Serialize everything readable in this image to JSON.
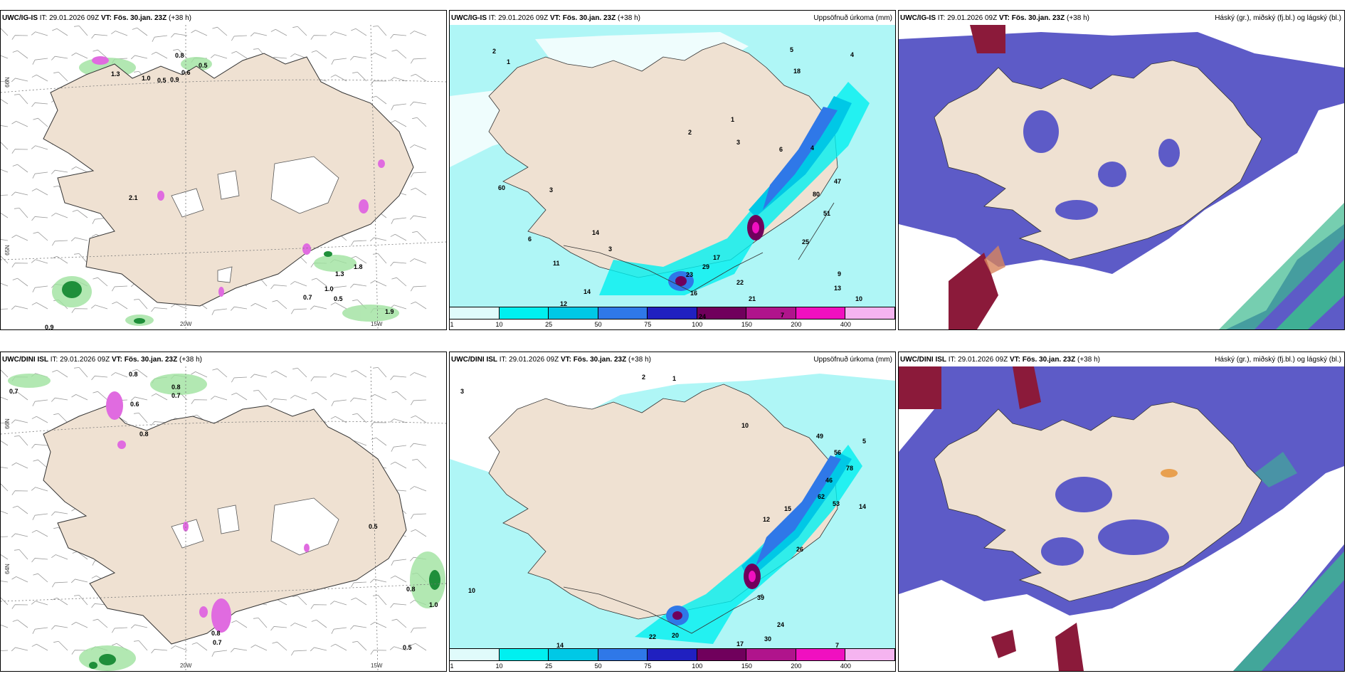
{
  "rows": [
    {
      "model": "UWC/IG-IS",
      "it_label": "IT:",
      "it_value": "29.01.2026 09Z",
      "vt_label": "VT:",
      "vt_value": "Fös. 30.jan. 23Z",
      "lead": "(+38 h)"
    },
    {
      "model": "UWC/DINI ISL",
      "it_label": "IT:",
      "it_value": "29.01.2026 09Z",
      "vt_label": "VT:",
      "vt_value": "Fös. 30.jan. 23Z",
      "lead": "(+38 h)"
    }
  ],
  "titles": {
    "precip": "Uppsöfnuð úrkoma (mm)",
    "clouds": "Háský (gr.), miðský (fj.bl.) og lágský (bl.)"
  },
  "axis_labels": {
    "lat66": "66N",
    "lat65": "65N",
    "lat64": "64N",
    "lon20": "20W",
    "lon15": "15W"
  },
  "colorbar": {
    "ticks": [
      "1",
      "10",
      "25",
      "50",
      "75",
      "100",
      "150",
      "200",
      "400"
    ],
    "colors": [
      "#e0fbfb",
      "#00f0f0",
      "#00c8e6",
      "#2f78e8",
      "#2020c0",
      "#70005c",
      "#b0148c",
      "#f010c0",
      "#f5b4f0"
    ]
  },
  "colors": {
    "land": "#efe1d2",
    "sea_precip": "#aff6f6",
    "cloud_blue": "#5d5bc7",
    "cloud_green": "#3cb98f",
    "cloud_red": "#8b1a3a",
    "wind_gust_green": "#8fe08f"
  },
  "wind_values_top": [
    "0.8",
    "0.5",
    "1.3",
    "1.0",
    "0.5",
    "0.9",
    "0.6",
    "2.1",
    "1.3",
    "1.8",
    "0.7",
    "1.0",
    "0.5",
    "0.9",
    "1.9"
  ],
  "wind_values_bottom": [
    "0.7",
    "0.8",
    "0.8",
    "0.7",
    "0.6",
    "0.8",
    "0.5",
    "0.8",
    "1.0",
    "0.7",
    "0.5",
    "0.8"
  ],
  "precip_values_top": [
    "2",
    "1",
    "3",
    "5",
    "4",
    "18",
    "1",
    "2",
    "6",
    "3",
    "4",
    "60",
    "14",
    "6",
    "3",
    "11",
    "17",
    "23",
    "29",
    "16",
    "22",
    "12",
    "14",
    "25",
    "51",
    "47",
    "80",
    "9",
    "13",
    "10",
    "7",
    "24",
    "21"
  ],
  "precip_values_bottom": [
    "2",
    "1",
    "3",
    "10",
    "49",
    "56",
    "78",
    "46",
    "62",
    "53",
    "14",
    "15",
    "12",
    "26",
    "39",
    "24",
    "17",
    "30",
    "10",
    "22",
    "20",
    "14",
    "7",
    "5"
  ]
}
